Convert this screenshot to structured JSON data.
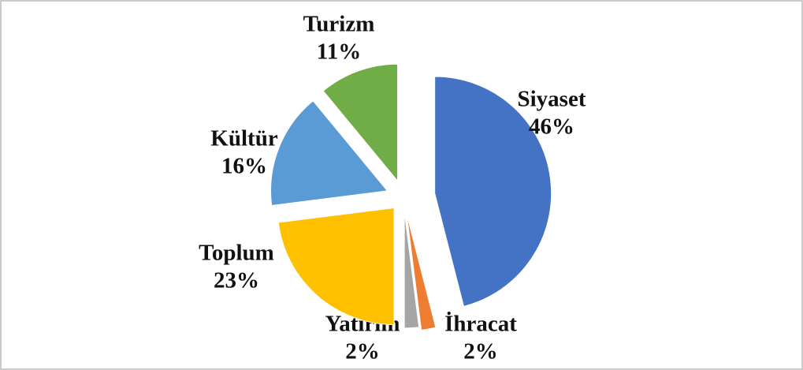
{
  "chart_data": {
    "type": "pie",
    "categories": [
      "Siyaset",
      "İhracat",
      "Yatırım",
      "Toplum",
      "Kültür",
      "Turizm"
    ],
    "values": [
      46,
      2,
      2,
      23,
      16,
      11
    ],
    "value_labels": [
      "46%",
      "2%",
      "2%",
      "23%",
      "16%",
      "11%"
    ],
    "colors": [
      "#4472c4",
      "#ed7d31",
      "#a5a5a5",
      "#ffc000",
      "#5b9bd5",
      "#70ad47"
    ]
  }
}
